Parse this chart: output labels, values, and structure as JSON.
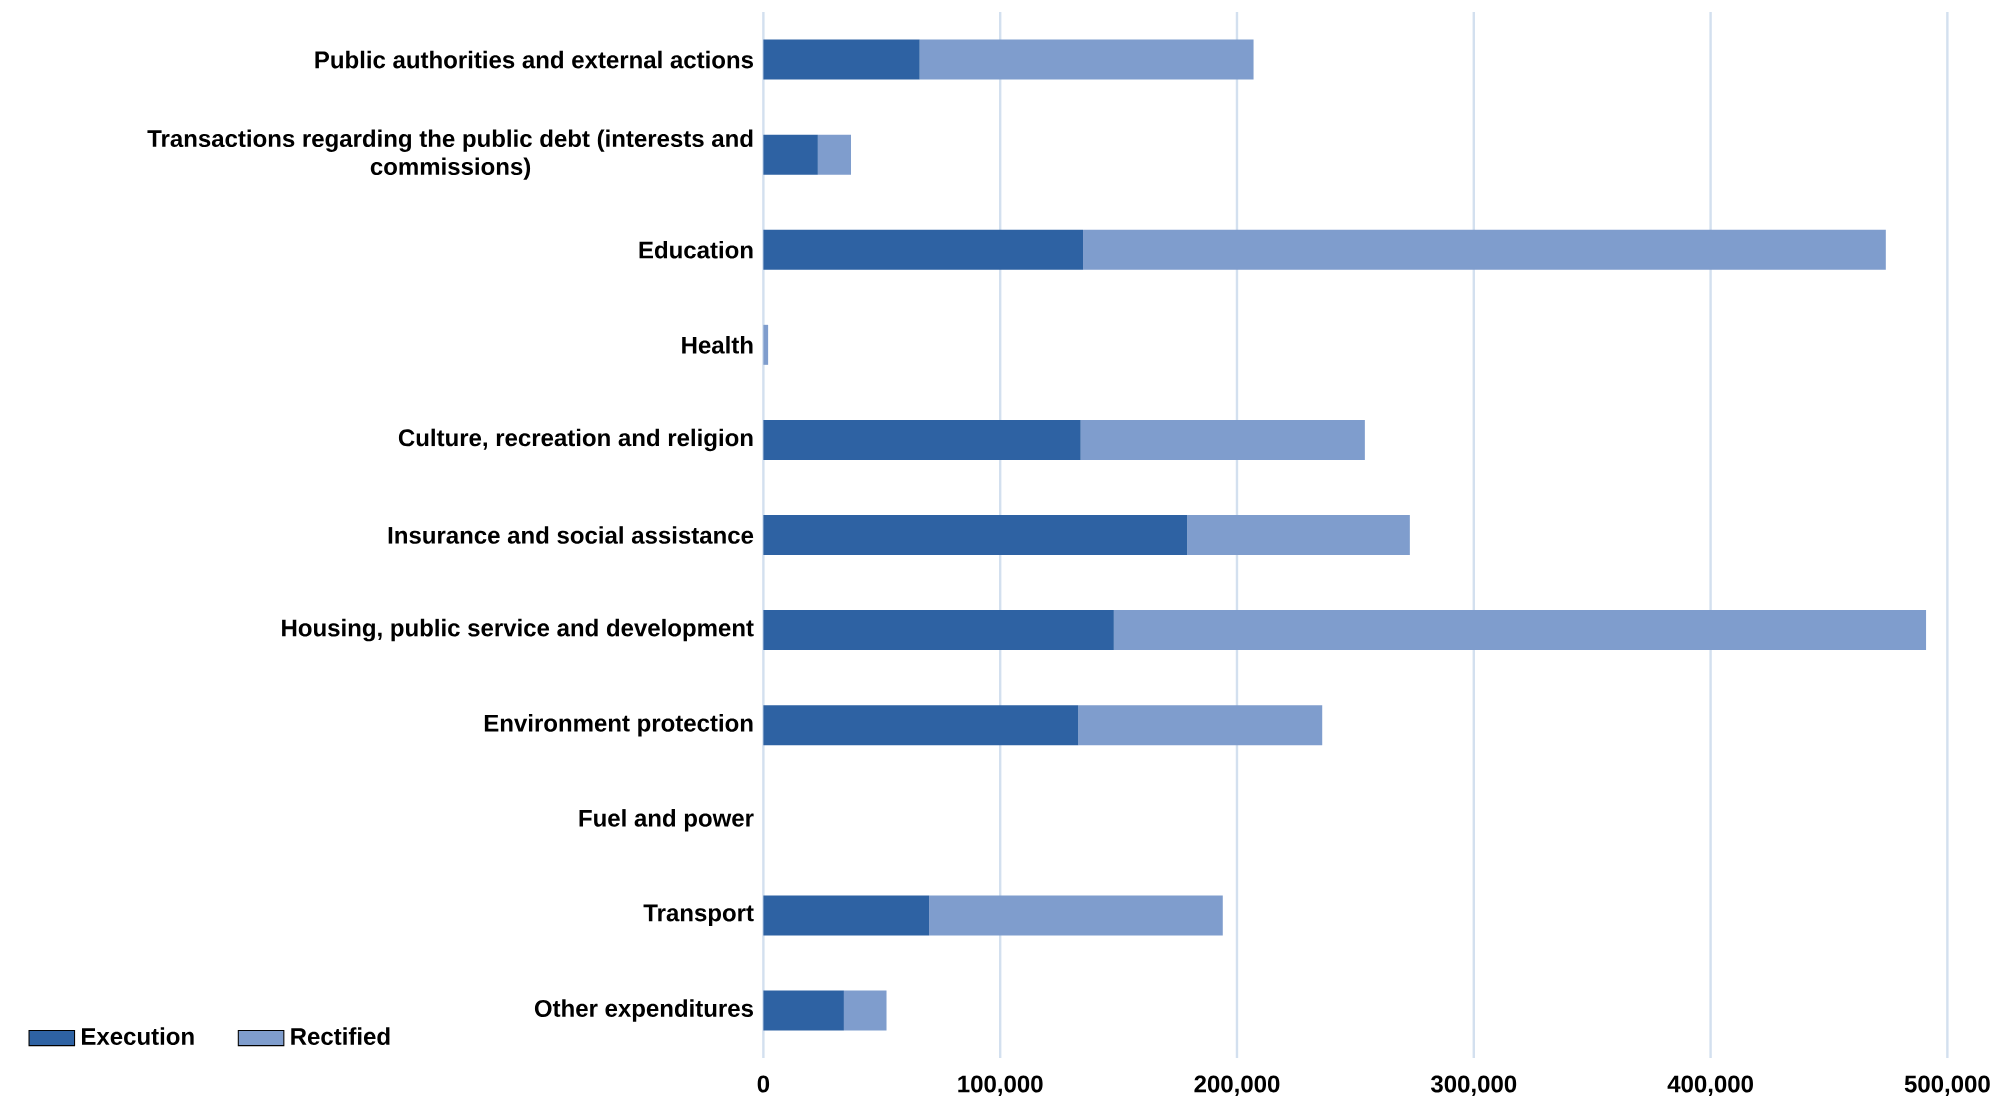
{
  "chart_data": {
    "type": "bar",
    "orientation": "horizontal",
    "stacked": true,
    "categories": [
      "Public authorities and external actions",
      "Transactions regarding the public debt (interests and commissions)",
      "Education",
      "Health",
      "Culture, recreation and religion",
      "Insurance and social assistance",
      "Housing, public service and development",
      "Environment protection",
      "Fuel and power",
      "Transport",
      "Other expenditures"
    ],
    "series": [
      {
        "name": "Execution",
        "color": "#2e62a3",
        "values": [
          66000,
          23000,
          135000,
          0,
          134000,
          179000,
          148000,
          133000,
          0,
          70000,
          34000
        ]
      },
      {
        "name": "Rectified",
        "color": "#7f9dcd",
        "values": [
          141000,
          14000,
          339000,
          2000,
          120000,
          94000,
          343000,
          103000,
          0,
          124000,
          18000
        ]
      }
    ],
    "xlim": [
      0,
      500000
    ],
    "xticks": [
      0,
      {
        "value": 100000,
        "label": "100,000"
      },
      {
        "value": 200000,
        "label": "200,000"
      },
      {
        "value": 300000,
        "label": "300,000"
      },
      {
        "value": 400000,
        "label": "400,000"
      },
      {
        "value": 500000,
        "label": "500,000"
      }
    ],
    "grid": "x",
    "legend": "bottom left"
  }
}
